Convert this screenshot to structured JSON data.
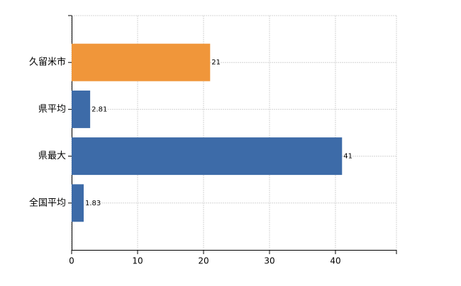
{
  "chart_data": {
    "type": "bar",
    "orientation": "horizontal",
    "categories": [
      "久留米市",
      "県平均",
      "県最大",
      "全国平均"
    ],
    "values": [
      21,
      2.81,
      41,
      1.83
    ],
    "colors": [
      "#f0963a",
      "#3d6ba8",
      "#3d6ba8",
      "#3d6ba8"
    ],
    "xlim": [
      0,
      49.25
    ],
    "xticks": [
      0,
      10,
      20,
      30,
      40
    ],
    "grid": true
  }
}
